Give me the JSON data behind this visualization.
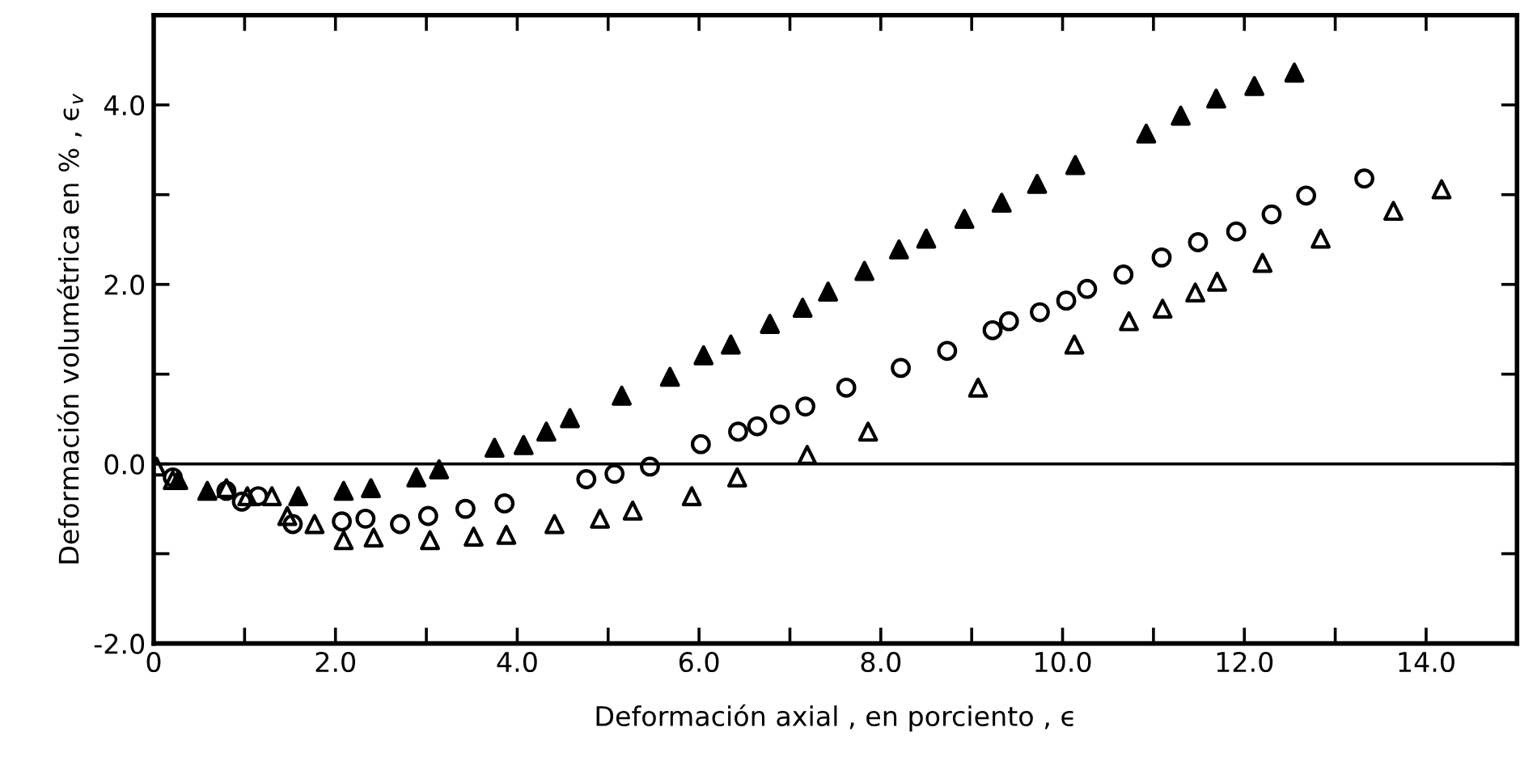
{
  "chart_data": {
    "type": "scatter",
    "xlabel": "Deformación axial , en porciento , ϵ",
    "ylabel": "Deformación volumétrica en % , ϵ$_{v}$",
    "xlim": [
      0,
      15
    ],
    "ylim": [
      -2,
      5
    ],
    "xticks": [
      {
        "value": 0,
        "label": "0"
      },
      {
        "value": 1,
        "label": null
      },
      {
        "value": 2,
        "label": "2.0"
      },
      {
        "value": 3,
        "label": null
      },
      {
        "value": 4,
        "label": "4.0"
      },
      {
        "value": 5,
        "label": null
      },
      {
        "value": 6,
        "label": "6.0"
      },
      {
        "value": 7,
        "label": null
      },
      {
        "value": 8,
        "label": "8.0"
      },
      {
        "value": 9,
        "label": null
      },
      {
        "value": 10,
        "label": "10.0"
      },
      {
        "value": 11,
        "label": null
      },
      {
        "value": 12,
        "label": "12.0"
      },
      {
        "value": 13,
        "label": null
      },
      {
        "value": 14,
        "label": "14.0"
      }
    ],
    "yticks": [
      {
        "value": -2,
        "label": "-2.0"
      },
      {
        "value": -1,
        "label": null
      },
      {
        "value": 0,
        "label": "0.0"
      },
      {
        "value": 1,
        "label": null
      },
      {
        "value": 2,
        "label": "2.0"
      },
      {
        "value": 3,
        "label": null
      },
      {
        "value": 4,
        "label": "4.0"
      }
    ],
    "grid": false,
    "ref_lines": [
      {
        "axis": "y",
        "value": 0,
        "color": "#000000",
        "line_style": "solid"
      }
    ],
    "series": [
      {
        "color": "#000000",
        "marker": "triangle",
        "x": [
          0.27,
          0.59,
          1.59,
          2.09,
          2.39,
          2.89,
          3.14,
          3.75,
          4.07,
          4.32,
          4.58,
          5.15,
          5.68,
          6.05,
          6.35,
          6.78,
          7.14,
          7.42,
          7.82,
          8.2,
          8.5,
          8.92,
          9.33,
          9.72,
          10.14,
          10.92,
          11.3,
          11.69,
          12.11,
          12.55
        ],
        "values": [
          -0.18,
          -0.3,
          -0.36,
          -0.3,
          -0.27,
          -0.15,
          -0.06,
          0.18,
          0.21,
          0.36,
          0.51,
          0.76,
          0.97,
          1.21,
          1.33,
          1.56,
          1.74,
          1.92,
          2.15,
          2.39,
          2.51,
          2.73,
          2.91,
          3.12,
          3.33,
          3.68,
          3.88,
          4.07,
          4.21,
          4.36
        ]
      },
      {
        "color": "#000000",
        "marker": "circle",
        "x": [
          0.21,
          0.8,
          0.97,
          1.15,
          1.53,
          2.07,
          2.33,
          2.71,
          3.02,
          3.43,
          3.86,
          4.76,
          5.07,
          5.46,
          6.02,
          6.43,
          6.64,
          6.89,
          7.17,
          7.62,
          8.22,
          8.73,
          9.23,
          9.41,
          9.75,
          10.04,
          10.27,
          10.67,
          11.09,
          11.49,
          11.91,
          12.3,
          12.68,
          13.32
        ],
        "values": [
          -0.15,
          -0.3,
          -0.42,
          -0.36,
          -0.67,
          -0.64,
          -0.61,
          -0.67,
          -0.58,
          -0.5,
          -0.44,
          -0.17,
          -0.11,
          -0.03,
          0.22,
          0.36,
          0.42,
          0.55,
          0.64,
          0.85,
          1.07,
          1.26,
          1.49,
          1.59,
          1.69,
          1.82,
          1.95,
          2.11,
          2.3,
          2.47,
          2.59,
          2.78,
          2.99,
          3.18
        ]
      },
      {
        "color": "#000000",
        "marker": "triangle",
        "x": [
          0.03,
          0.21,
          0.8,
          1.03,
          1.3,
          1.47,
          1.77,
          2.09,
          2.42,
          3.04,
          3.52,
          3.88,
          4.41,
          4.91,
          5.27,
          5.92,
          6.42,
          7.19,
          7.86,
          9.07,
          10.13,
          10.73,
          11.1,
          11.46,
          11.7,
          12.2,
          12.84,
          13.64,
          14.17
        ],
        "values": [
          -0.03,
          -0.18,
          -0.27,
          -0.36,
          -0.36,
          -0.58,
          -0.67,
          -0.85,
          -0.82,
          -0.85,
          -0.81,
          -0.79,
          -0.67,
          -0.61,
          -0.52,
          -0.36,
          -0.15,
          0.1,
          0.36,
          0.85,
          1.33,
          1.59,
          1.73,
          1.91,
          2.03,
          2.24,
          2.51,
          2.82,
          3.06
        ]
      }
    ]
  }
}
